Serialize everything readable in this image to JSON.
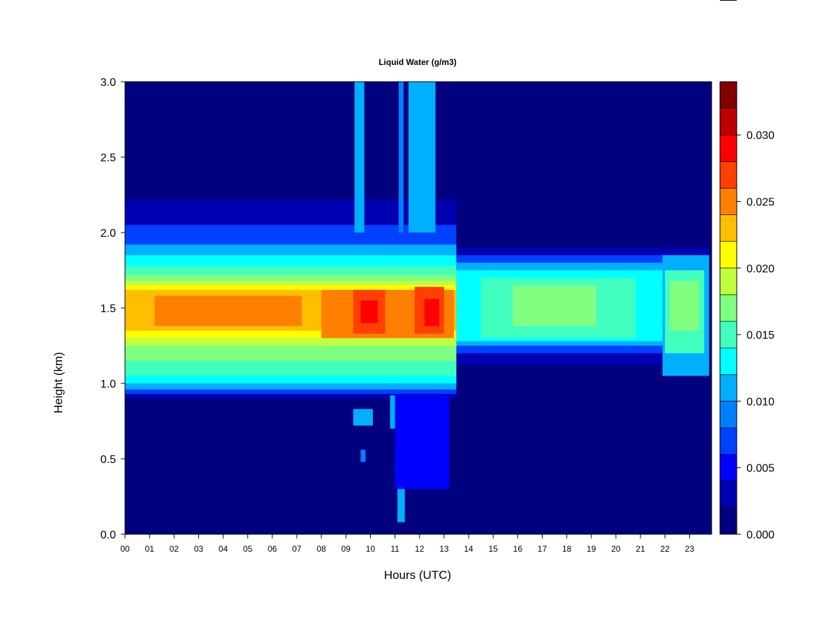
{
  "chart_data": {
    "type": "heatmap",
    "title": "Liquid Water (g/m3)",
    "xlabel": "Hours (UTC)",
    "ylabel": "Height (km)",
    "xlim": [
      0,
      23.9
    ],
    "ylim": [
      0.0,
      3.0
    ],
    "x_ticks": [
      "00",
      "01",
      "02",
      "03",
      "04",
      "05",
      "06",
      "07",
      "08",
      "09",
      "10",
      "11",
      "12",
      "13",
      "14",
      "15",
      "16",
      "17",
      "18",
      "19",
      "20",
      "21",
      "22",
      "23"
    ],
    "y_ticks": [
      "0.0",
      "0.5",
      "1.0",
      "1.5",
      "2.0",
      "2.5",
      "3.0"
    ],
    "colorbar": {
      "range": [
        0.0,
        0.034
      ],
      "ticks": [
        "0.000",
        "0.005",
        "0.010",
        "0.015",
        "0.020",
        "0.025",
        "0.030"
      ],
      "levels": [
        {
          "from": 0.0,
          "to": 0.002,
          "color": "#00007f"
        },
        {
          "from": 0.002,
          "to": 0.004,
          "color": "#0000b2"
        },
        {
          "from": 0.004,
          "to": 0.006,
          "color": "#0000ff"
        },
        {
          "from": 0.006,
          "to": 0.008,
          "color": "#0040ff"
        },
        {
          "from": 0.008,
          "to": 0.01,
          "color": "#0080ff"
        },
        {
          "from": 0.01,
          "to": 0.012,
          "color": "#00b0ff"
        },
        {
          "from": 0.012,
          "to": 0.014,
          "color": "#00ffff"
        },
        {
          "from": 0.014,
          "to": 0.016,
          "color": "#40ffbf"
        },
        {
          "from": 0.016,
          "to": 0.018,
          "color": "#80ff80"
        },
        {
          "from": 0.018,
          "to": 0.02,
          "color": "#bfff40"
        },
        {
          "from": 0.02,
          "to": 0.022,
          "color": "#ffff00"
        },
        {
          "from": 0.022,
          "to": 0.024,
          "color": "#ffbf00"
        },
        {
          "from": 0.024,
          "to": 0.026,
          "color": "#ff8000"
        },
        {
          "from": 0.026,
          "to": 0.028,
          "color": "#ff4000"
        },
        {
          "from": 0.028,
          "to": 0.03,
          "color": "#ff0000"
        },
        {
          "from": 0.03,
          "to": 0.032,
          "color": "#bf0000"
        },
        {
          "from": 0.032,
          "to": 0.034,
          "color": "#800000"
        }
      ]
    },
    "background_value": 0.0,
    "regions": [
      {
        "x0": 0.0,
        "x1": 13.5,
        "y0": 0.9,
        "y1": 2.22,
        "value": 0.003
      },
      {
        "x0": 0.0,
        "x1": 13.5,
        "y0": 0.93,
        "y1": 2.05,
        "value": 0.007
      },
      {
        "x0": 0.0,
        "x1": 13.5,
        "y0": 0.96,
        "y1": 1.92,
        "value": 0.011
      },
      {
        "x0": 0.0,
        "x1": 13.5,
        "y0": 1.0,
        "y1": 1.85,
        "value": 0.013
      },
      {
        "x0": 0.0,
        "x1": 13.5,
        "y0": 1.05,
        "y1": 1.78,
        "value": 0.015
      },
      {
        "x0": 0.0,
        "x1": 13.5,
        "y0": 1.15,
        "y1": 1.72,
        "value": 0.017
      },
      {
        "x0": 0.0,
        "x1": 13.5,
        "y0": 1.25,
        "y1": 1.68,
        "value": 0.019
      },
      {
        "x0": 0.0,
        "x1": 13.5,
        "y0": 1.3,
        "y1": 1.65,
        "value": 0.021
      },
      {
        "x0": 0.0,
        "x1": 13.5,
        "y0": 1.35,
        "y1": 1.62,
        "value": 0.023
      },
      {
        "x0": 1.2,
        "x1": 7.2,
        "y0": 1.38,
        "y1": 1.58,
        "value": 0.025
      },
      {
        "x0": 8.0,
        "x1": 13.4,
        "y0": 1.3,
        "y1": 1.62,
        "value": 0.025
      },
      {
        "x0": 9.3,
        "x1": 10.6,
        "y0": 1.33,
        "y1": 1.62,
        "value": 0.027
      },
      {
        "x0": 11.8,
        "x1": 13.0,
        "y0": 1.33,
        "y1": 1.64,
        "value": 0.027
      },
      {
        "x0": 9.6,
        "x1": 10.3,
        "y0": 1.4,
        "y1": 1.55,
        "value": 0.029
      },
      {
        "x0": 12.2,
        "x1": 12.8,
        "y0": 1.38,
        "y1": 1.56,
        "value": 0.029
      },
      {
        "x0": 9.35,
        "x1": 9.75,
        "y0": 2.0,
        "y1": 3.0,
        "value": 0.011
      },
      {
        "x0": 11.15,
        "x1": 11.35,
        "y0": 2.0,
        "y1": 3.0,
        "value": 0.009
      },
      {
        "x0": 11.55,
        "x1": 12.65,
        "y0": 2.0,
        "y1": 3.0,
        "value": 0.011
      },
      {
        "x0": 9.3,
        "x1": 10.1,
        "y0": 0.72,
        "y1": 0.83,
        "value": 0.011
      },
      {
        "x0": 9.6,
        "x1": 9.8,
        "y0": 0.48,
        "y1": 0.56,
        "value": 0.009
      },
      {
        "x0": 10.8,
        "x1": 12.9,
        "y0": 0.7,
        "y1": 0.92,
        "value": 0.011
      },
      {
        "x0": 11.0,
        "x1": 12.8,
        "y0": 0.38,
        "y1": 0.55,
        "value": 0.011
      },
      {
        "x0": 11.1,
        "x1": 11.4,
        "y0": 0.08,
        "y1": 0.38,
        "value": 0.011
      },
      {
        "x0": 11.0,
        "x1": 13.2,
        "y0": 0.3,
        "y1": 0.92,
        "value": 0.004
      },
      {
        "x0": 13.5,
        "x1": 23.8,
        "y0": 1.12,
        "y1": 1.9,
        "value": 0.003
      },
      {
        "x0": 13.5,
        "x1": 23.8,
        "y0": 1.2,
        "y1": 1.85,
        "value": 0.007
      },
      {
        "x0": 13.5,
        "x1": 23.8,
        "y0": 1.25,
        "y1": 1.8,
        "value": 0.011
      },
      {
        "x0": 13.5,
        "x1": 23.8,
        "y0": 1.28,
        "y1": 1.75,
        "value": 0.013
      },
      {
        "x0": 14.5,
        "x1": 20.8,
        "y0": 1.3,
        "y1": 1.7,
        "value": 0.015
      },
      {
        "x0": 15.8,
        "x1": 19.2,
        "y0": 1.38,
        "y1": 1.65,
        "value": 0.016
      },
      {
        "x0": 21.9,
        "x1": 23.8,
        "y0": 1.05,
        "y1": 1.85,
        "value": 0.011
      },
      {
        "x0": 22.0,
        "x1": 23.6,
        "y0": 1.2,
        "y1": 1.75,
        "value": 0.015
      },
      {
        "x0": 22.2,
        "x1": 23.4,
        "y0": 1.35,
        "y1": 1.68,
        "value": 0.017
      }
    ]
  }
}
